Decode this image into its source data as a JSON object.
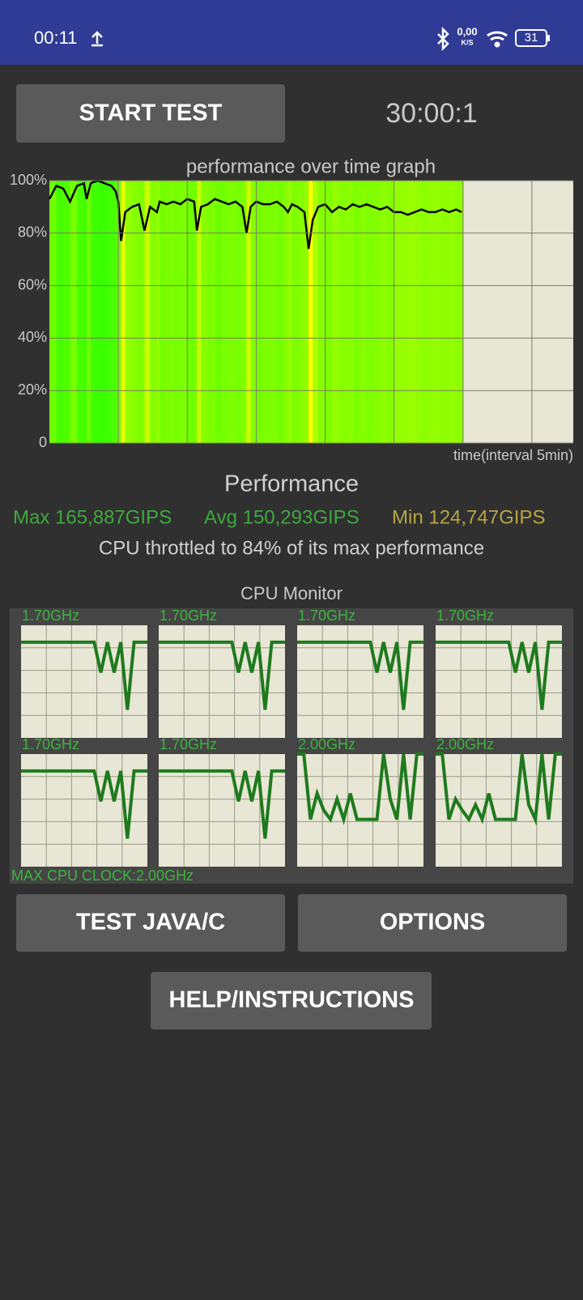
{
  "status_bar": {
    "time": "00:11",
    "net_speed": "0,00",
    "net_unit": "K/S",
    "battery": "31"
  },
  "buttons": {
    "start": "START TEST",
    "test_java": "TEST JAVA/C",
    "options": "OPTIONS",
    "help": "HELP/INSTRUCTIONS"
  },
  "timer": "30:00:1",
  "chart_data": {
    "type": "line",
    "title": "performance over time graph",
    "x_label": "time(interval 5min)",
    "x": [
      0,
      0.5,
      1,
      1.5,
      2,
      2.5,
      2.7,
      3,
      3.5,
      4,
      4.5,
      4.8,
      5,
      5.2,
      5.5,
      6,
      6.5,
      6.9,
      7.3,
      7.8,
      8,
      8.5,
      9,
      9.5,
      10,
      10.5,
      10.7,
      11,
      11.5,
      12,
      12.5,
      13,
      13.5,
      14,
      14.3,
      14.6,
      15,
      15.5,
      16,
      16.5,
      17,
      17.3,
      17.6,
      18,
      18.5,
      18.8,
      19.1,
      19.5,
      20,
      20.5,
      21,
      21.5,
      22,
      22.5,
      23,
      23.5,
      24,
      24.5,
      25,
      25.5,
      26,
      26.5,
      27,
      27.5,
      28,
      28.5,
      29,
      29.5,
      29.9
    ],
    "values": [
      93,
      98,
      97,
      92,
      98,
      99,
      93,
      99,
      100,
      99,
      98,
      96,
      92,
      77,
      88,
      90,
      91,
      81,
      90,
      88,
      92,
      91,
      92,
      91,
      93,
      92,
      81,
      90,
      91,
      93,
      92,
      91,
      92,
      90,
      80,
      90,
      92,
      91,
      91,
      92,
      90,
      88,
      91,
      90,
      88,
      74,
      85,
      90,
      91,
      88,
      90,
      89,
      91,
      90,
      91,
      90,
      89,
      90,
      88,
      88,
      87,
      88,
      89,
      88,
      88,
      89,
      88,
      89,
      88
    ],
    "color": "#000000",
    "background": "#e8e6d4",
    "xlim": [
      0,
      38
    ],
    "x_grid_step": 5,
    "ylim": [
      0,
      100
    ],
    "yticks": [
      0,
      {
        "value": 20,
        "label": "20%"
      },
      {
        "value": 40,
        "label": "40%"
      },
      {
        "value": 60,
        "label": "60%"
      },
      {
        "value": 80,
        "label": "80%"
      },
      {
        "value": 100,
        "label": "100%"
      }
    ],
    "grid": true
  },
  "performance": {
    "title": "Performance",
    "max": "Max 165,887GIPS",
    "avg": "Avg 150,293GIPS",
    "min": "Min 124,747GIPS",
    "throttle": "CPU throttled to 84% of its max performance"
  },
  "cpu_monitor": {
    "title": "CPU Monitor",
    "max_clock": "MAX CPU CLOCK:2.00GHz",
    "ylim": [
      0,
      2
    ],
    "color": "#1e7a1e",
    "cores": [
      {
        "label": "1.70GHz",
        "values": [
          1.7,
          1.7,
          1.7,
          1.7,
          1.7,
          1.7,
          1.7,
          1.7,
          1.7,
          1.7,
          1.7,
          1.7,
          1.16,
          1.7,
          1.16,
          1.7,
          0.5,
          1.7,
          1.7,
          1.7
        ]
      },
      {
        "label": "1.70GHz",
        "values": [
          1.7,
          1.7,
          1.7,
          1.7,
          1.7,
          1.7,
          1.7,
          1.7,
          1.7,
          1.7,
          1.7,
          1.7,
          1.16,
          1.7,
          1.16,
          1.7,
          0.5,
          1.7,
          1.7,
          1.7
        ]
      },
      {
        "label": "1.70GHz",
        "values": [
          1.7,
          1.7,
          1.7,
          1.7,
          1.7,
          1.7,
          1.7,
          1.7,
          1.7,
          1.7,
          1.7,
          1.7,
          1.16,
          1.7,
          1.16,
          1.7,
          0.5,
          1.7,
          1.7,
          1.7
        ]
      },
      {
        "label": "1.70GHz",
        "values": [
          1.7,
          1.7,
          1.7,
          1.7,
          1.7,
          1.7,
          1.7,
          1.7,
          1.7,
          1.7,
          1.7,
          1.7,
          1.16,
          1.7,
          1.16,
          1.7,
          0.5,
          1.7,
          1.7,
          1.7
        ]
      },
      {
        "label": "1.70GHz",
        "values": [
          1.7,
          1.7,
          1.7,
          1.7,
          1.7,
          1.7,
          1.7,
          1.7,
          1.7,
          1.7,
          1.7,
          1.7,
          1.16,
          1.7,
          1.16,
          1.7,
          0.5,
          1.7,
          1.7,
          1.7
        ]
      },
      {
        "label": "1.70GHz",
        "values": [
          1.7,
          1.7,
          1.7,
          1.7,
          1.7,
          1.7,
          1.7,
          1.7,
          1.7,
          1.7,
          1.7,
          1.7,
          1.16,
          1.7,
          1.16,
          1.7,
          0.5,
          1.7,
          1.7,
          1.7
        ]
      },
      {
        "label": "2.00GHz",
        "values": [
          2.0,
          2.0,
          0.84,
          1.3,
          1.0,
          0.84,
          1.2,
          0.84,
          1.3,
          0.84,
          0.84,
          0.84,
          0.84,
          2.0,
          1.2,
          0.84,
          2.0,
          0.84,
          2.0,
          2.0
        ]
      },
      {
        "label": "2.00GHz",
        "values": [
          2.0,
          2.0,
          0.84,
          1.2,
          1.0,
          0.84,
          1.1,
          0.84,
          1.3,
          0.84,
          0.84,
          0.84,
          0.84,
          2.0,
          1.1,
          0.84,
          2.0,
          0.84,
          2.0,
          2.0
        ]
      }
    ]
  }
}
